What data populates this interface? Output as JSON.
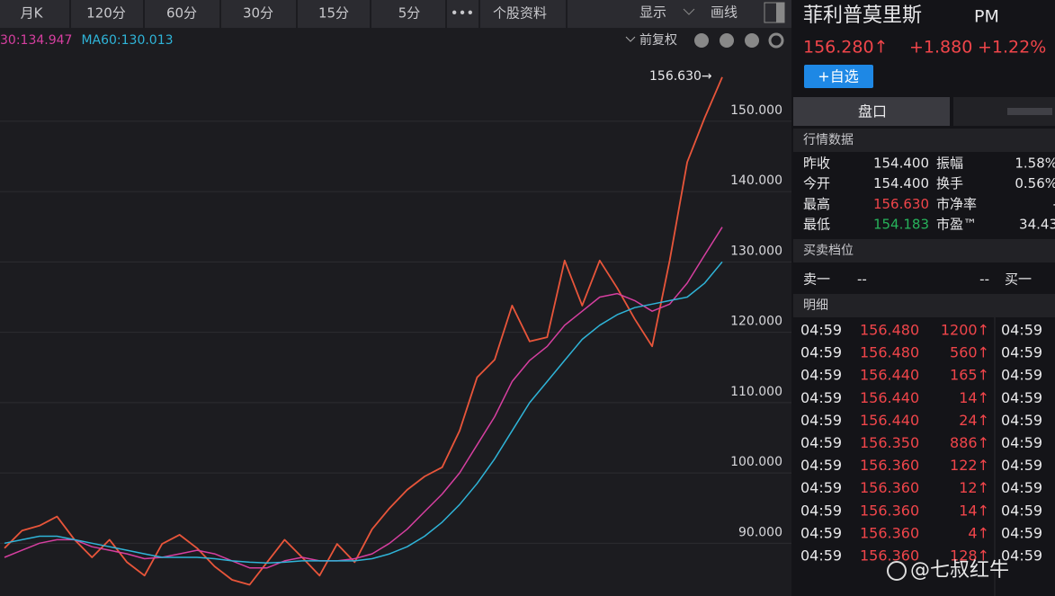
{
  "toolbar": {
    "tabs": [
      "月K",
      "120分",
      "60分",
      "30分",
      "15分",
      "5分",
      "•••",
      "个股资料"
    ],
    "display": "显示",
    "draw": "画线"
  },
  "chart_bar": {
    "adjust": "前复权"
  },
  "chart_data": {
    "type": "line",
    "annotation": "156.630→",
    "categories": [
      null,
      null,
      null,
      null,
      null,
      null,
      null,
      null,
      null,
      null,
      null,
      null,
      null,
      null,
      null,
      null,
      null,
      null,
      null,
      null,
      null,
      null,
      null,
      null,
      null,
      null,
      null,
      null,
      null,
      null,
      null,
      null,
      null,
      null,
      null,
      null,
      null,
      null,
      null,
      null,
      null,
      null
    ],
    "series": [
      {
        "color": "#e8553a",
        "values": [
          89.3,
          91.8,
          92.5,
          93.8,
          90.5,
          88,
          90.5,
          87.3,
          85.4,
          89.9,
          91.2,
          89.3,
          86.7,
          84.8,
          84.1,
          87.3,
          90.5,
          88,
          85.4,
          89.9,
          87.3,
          92,
          95,
          97.6,
          99.5,
          100.8,
          106,
          113.6,
          116.1,
          123.8,
          118.7,
          119.3,
          130.2,
          123.8,
          130.2,
          126.3,
          121.9,
          118,
          130.2,
          144.2,
          150.5,
          156.28
        ]
      },
      {
        "name": "30:134.947",
        "color": "#d63fa0",
        "values": [
          88,
          89,
          90,
          90.5,
          90.5,
          89.5,
          89,
          88.5,
          87.8,
          88,
          88.5,
          89,
          88.5,
          87.5,
          86.5,
          86.5,
          87.5,
          88,
          87.5,
          87.5,
          87.8,
          88.5,
          90,
          92,
          94.5,
          97,
          100,
          104,
          108,
          113,
          116,
          118,
          121,
          123,
          125,
          125.5,
          124.5,
          123,
          124,
          127,
          131,
          134.947
        ]
      },
      {
        "name": "MA60:130.013",
        "color": "#2fb4d8",
        "values": [
          90,
          90.5,
          91,
          91,
          90.5,
          90,
          89.5,
          89,
          88.5,
          88,
          88,
          88,
          87.8,
          87.5,
          87.3,
          87.2,
          87.3,
          87.5,
          87.5,
          87.5,
          87.5,
          87.8,
          88.5,
          89.5,
          91,
          93,
          95.5,
          98.5,
          102,
          106,
          110,
          113,
          116,
          119,
          121,
          122.5,
          123.5,
          124,
          124.5,
          125,
          127,
          130.013
        ]
      }
    ],
    "ylim": [
      82.5,
      158.3
    ],
    "yticks": [
      {
        "value": 90,
        "label": "90.000"
      },
      {
        "value": 100,
        "label": "100.000"
      },
      {
        "value": 110,
        "label": "110.000"
      },
      {
        "value": 120,
        "label": "120.000"
      },
      {
        "value": 130,
        "label": "130.000"
      },
      {
        "value": 140,
        "label": "140.000"
      },
      {
        "value": 150,
        "label": "150.000"
      }
    ],
    "grid": true
  },
  "quote": {
    "name": "菲利普莫里斯",
    "ticker": "PM",
    "price": "156.280↑",
    "change": "+1.880",
    "change_pct": "+1.22%",
    "watch_button": "+自选",
    "tab": "盘口"
  },
  "market_data": {
    "title": "行情数据",
    "rows": [
      [
        "昨收",
        "154.400",
        "振幅",
        "1.58%"
      ],
      [
        "今开",
        "154.400",
        "换手",
        "0.56%"
      ],
      [
        "最高",
        "156.630",
        "市净率",
        "-"
      ],
      [
        "最低",
        "154.183",
        "市盈™",
        "34.43"
      ]
    ]
  },
  "order_book": {
    "title": "买卖档位",
    "row": [
      "卖一",
      "--",
      "--",
      "买一"
    ]
  },
  "trades": {
    "title": "明细",
    "rows": [
      [
        "04:59",
        "156.480",
        "1200↑",
        "04:59"
      ],
      [
        "04:59",
        "156.480",
        "560↑",
        "04:59"
      ],
      [
        "04:59",
        "156.440",
        "165↑",
        "04:59"
      ],
      [
        "04:59",
        "156.440",
        "14↑",
        "04:59"
      ],
      [
        "04:59",
        "156.440",
        "24↑",
        "04:59"
      ],
      [
        "04:59",
        "156.350",
        "886↑",
        "04:59"
      ],
      [
        "04:59",
        "156.360",
        "122↑",
        "04:59"
      ],
      [
        "04:59",
        "156.360",
        "12↑",
        "04:59"
      ],
      [
        "04:59",
        "156.360",
        "14↑",
        "04:59"
      ],
      [
        "04:59",
        "156.360",
        "4↑",
        "04:59"
      ],
      [
        "04:59",
        "156.360",
        "128↑",
        "04:59"
      ]
    ]
  },
  "watermark": "@七叔红牛"
}
